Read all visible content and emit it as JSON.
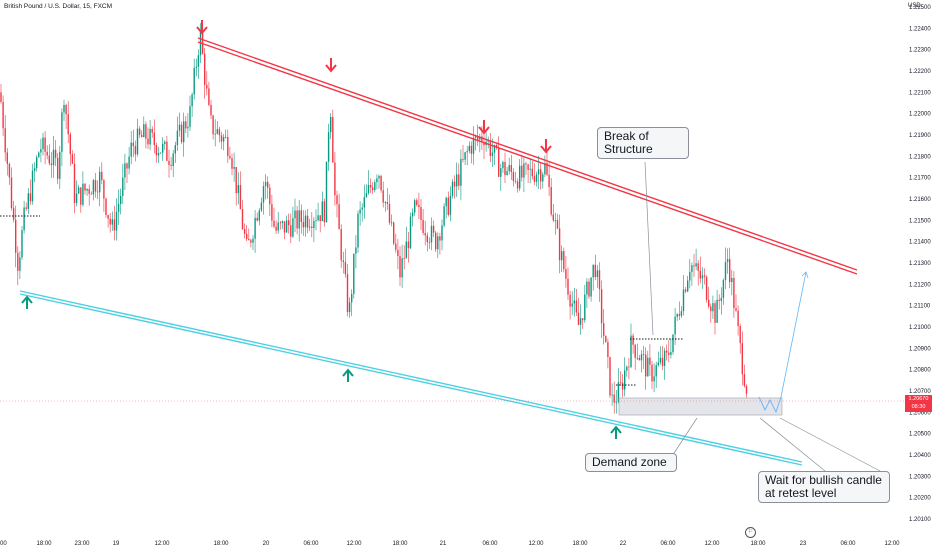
{
  "header": {
    "symbol_title": "British Pound / U.S. Dollar, 15, FXCM",
    "currency": "USD"
  },
  "price_badge": {
    "price": "1.20670",
    "countdown": "08:30"
  },
  "annotations": {
    "break_of_structure": "Break of\nStructure",
    "demand_zone": "Demand zone",
    "wait_note": "Wait for bullish candle\nat retest level"
  },
  "icons": {
    "bottom_icon": "flag-icon"
  },
  "chart_data": {
    "type": "candlestick",
    "title": "",
    "ylim": [
      1.201,
      1.2255
    ],
    "y_ticks": [
      "1.22500",
      "1.22400",
      "1.22300",
      "1.22200",
      "1.22100",
      "1.22000",
      "1.21900",
      "1.21800",
      "1.21700",
      "1.21600",
      "1.21500",
      "1.21400",
      "1.21300",
      "1.21200",
      "1.21100",
      "1.21000",
      "1.20900",
      "1.20800",
      "1.20700",
      "1.20600",
      "1.20500",
      "1.20400",
      "1.20300",
      "1.20200",
      "1.20100"
    ],
    "x_ticks": [
      "00",
      "18:00",
      "23:00",
      "19",
      "12:00",
      "18:00",
      "20",
      "06:00",
      "12:00",
      "18:00",
      "21",
      "06:00",
      "12:00",
      "18:00",
      "22",
      "06:00",
      "12:00",
      "18:00",
      "23",
      "06:00",
      "12:00"
    ],
    "colors": {
      "up": "#089981",
      "down": "#f23645",
      "resistance": "#f23645",
      "support": "#4dd0e1",
      "zone": "#d1d4dc",
      "projection": "#64b5f6"
    },
    "resistance_line": {
      "from_price": 1.2241,
      "to_price": 1.213
    },
    "support_line": {
      "from_price": 1.2118,
      "to_price": 1.2035
    },
    "demand_zone": {
      "low": 1.2062,
      "high": 1.2071
    },
    "current_price": 1.2067
  }
}
